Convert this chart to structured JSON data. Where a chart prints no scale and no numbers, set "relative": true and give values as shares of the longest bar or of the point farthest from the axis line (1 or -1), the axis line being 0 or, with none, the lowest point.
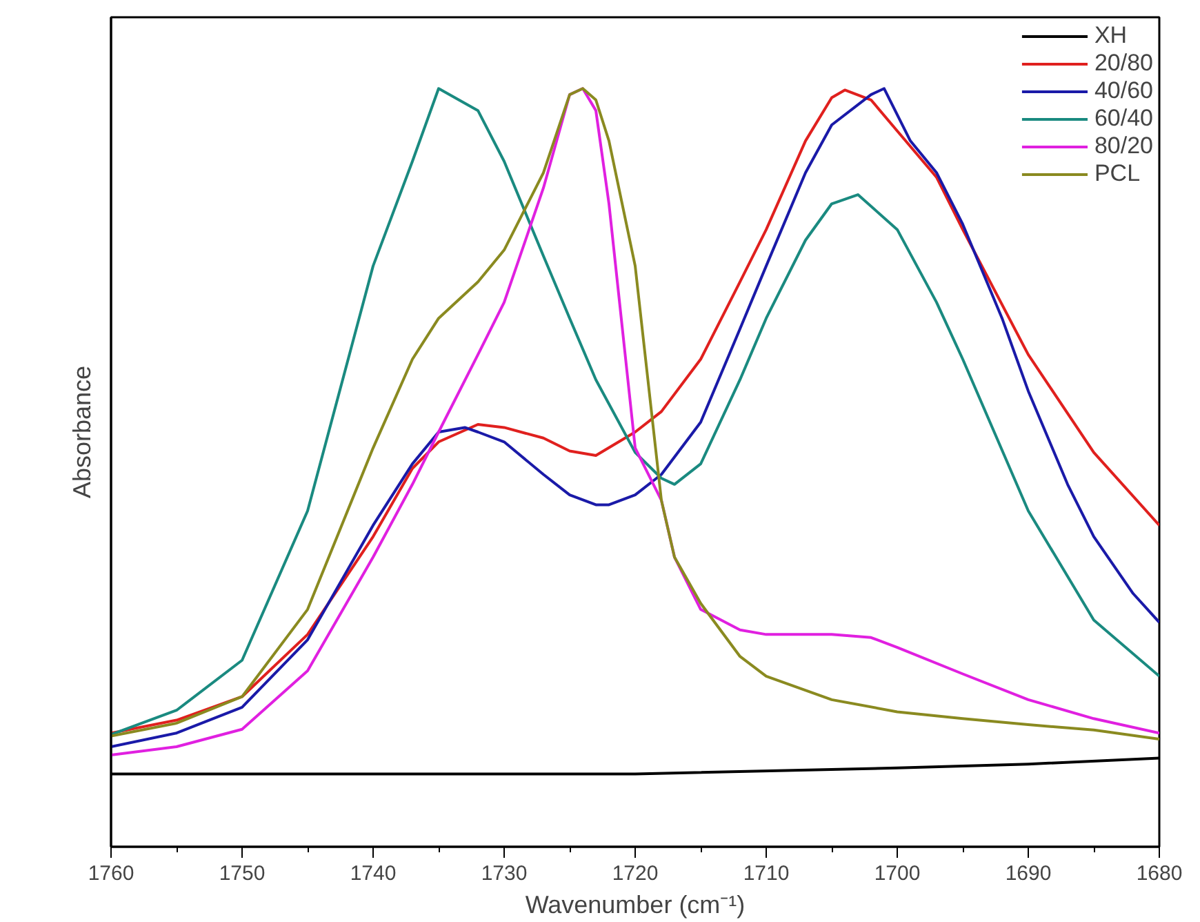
{
  "chart_data": {
    "type": "line",
    "relative": true,
    "xlabel": "Wavenumber (cm⁻¹)",
    "ylabel": "Absorbance",
    "xlim": [
      1760,
      1680
    ],
    "xticks": [
      1760,
      1750,
      1740,
      1730,
      1720,
      1710,
      1700,
      1690,
      1680
    ],
    "tick_labels": "x",
    "grid": false,
    "legend": "top right",
    "line_style": "solid",
    "marker": "none",
    "series": [
      {
        "name": "XH",
        "color": "#000000",
        "x": [
          1760,
          1740,
          1720,
          1700,
          1690,
          1680
        ],
        "values": [
          0.096,
          0.096,
          0.096,
          0.104,
          0.109,
          0.117
        ]
      },
      {
        "name": "20/80",
        "color": "#e0201e",
        "x": [
          1760,
          1755,
          1750,
          1745,
          1740,
          1737,
          1735,
          1732,
          1730,
          1727,
          1725,
          1723,
          1720,
          1718,
          1715,
          1712,
          1710,
          1707,
          1705,
          1704,
          1702,
          1700,
          1697,
          1695,
          1690,
          1685,
          1680
        ],
        "values": [
          0.15,
          0.167,
          0.198,
          0.28,
          0.409,
          0.499,
          0.534,
          0.557,
          0.553,
          0.539,
          0.522,
          0.516,
          0.547,
          0.574,
          0.643,
          0.745,
          0.814,
          0.931,
          0.988,
          0.998,
          0.985,
          0.944,
          0.883,
          0.814,
          0.649,
          0.52,
          0.424
        ]
      },
      {
        "name": "40/60",
        "color": "#1a1aa8",
        "x": [
          1760,
          1755,
          1750,
          1745,
          1740,
          1737,
          1735,
          1733,
          1732,
          1730,
          1727,
          1725,
          1723,
          1722,
          1720,
          1718,
          1715,
          1712,
          1710,
          1707,
          1705,
          1702,
          1701,
          1699,
          1697,
          1695,
          1692,
          1690,
          1687,
          1685,
          1682,
          1680
        ],
        "values": [
          0.132,
          0.15,
          0.184,
          0.273,
          0.424,
          0.505,
          0.547,
          0.553,
          0.547,
          0.534,
          0.491,
          0.464,
          0.451,
          0.451,
          0.464,
          0.491,
          0.56,
          0.683,
          0.766,
          0.889,
          0.952,
          0.992,
          1.0,
          0.931,
          0.889,
          0.821,
          0.697,
          0.601,
          0.478,
          0.409,
          0.334,
          0.296
        ]
      },
      {
        "name": "60/40",
        "color": "#1a8a80",
        "x": [
          1760,
          1755,
          1750,
          1745,
          1740,
          1737,
          1735,
          1732,
          1730,
          1727,
          1725,
          1723,
          1720,
          1718,
          1717,
          1715,
          1712,
          1710,
          1707,
          1705,
          1703,
          1700,
          1697,
          1695,
          1690,
          1685,
          1680
        ],
        "values": [
          0.148,
          0.18,
          0.246,
          0.443,
          0.766,
          0.904,
          1.0,
          0.971,
          0.904,
          0.779,
          0.697,
          0.616,
          0.52,
          0.486,
          0.478,
          0.505,
          0.616,
          0.697,
          0.8,
          0.848,
          0.86,
          0.814,
          0.718,
          0.643,
          0.443,
          0.299,
          0.225
        ]
      },
      {
        "name": "80/20",
        "color": "#e020e0",
        "x": [
          1760,
          1755,
          1750,
          1745,
          1740,
          1737,
          1735,
          1732,
          1730,
          1727,
          1725,
          1724,
          1723,
          1722,
          1720,
          1718,
          1717,
          1715,
          1712,
          1710,
          1705,
          1702,
          1700,
          1695,
          1690,
          1685,
          1680
        ],
        "values": [
          0.121,
          0.132,
          0.155,
          0.232,
          0.382,
          0.478,
          0.547,
          0.649,
          0.718,
          0.869,
          0.992,
          1.0,
          0.971,
          0.848,
          0.526,
          0.457,
          0.382,
          0.313,
          0.286,
          0.28,
          0.28,
          0.276,
          0.263,
          0.228,
          0.194,
          0.169,
          0.15
        ]
      },
      {
        "name": "PCL",
        "color": "#8a8a20",
        "x": [
          1760,
          1755,
          1750,
          1745,
          1740,
          1737,
          1735,
          1732,
          1730,
          1727,
          1725,
          1724,
          1723,
          1722,
          1720,
          1718,
          1717,
          1715,
          1712,
          1710,
          1705,
          1700,
          1695,
          1690,
          1685,
          1680
        ],
        "values": [
          0.146,
          0.163,
          0.198,
          0.313,
          0.526,
          0.643,
          0.697,
          0.745,
          0.787,
          0.889,
          0.992,
          1.0,
          0.985,
          0.931,
          0.766,
          0.457,
          0.382,
          0.321,
          0.251,
          0.225,
          0.194,
          0.178,
          0.169,
          0.161,
          0.154,
          0.142
        ]
      }
    ]
  }
}
